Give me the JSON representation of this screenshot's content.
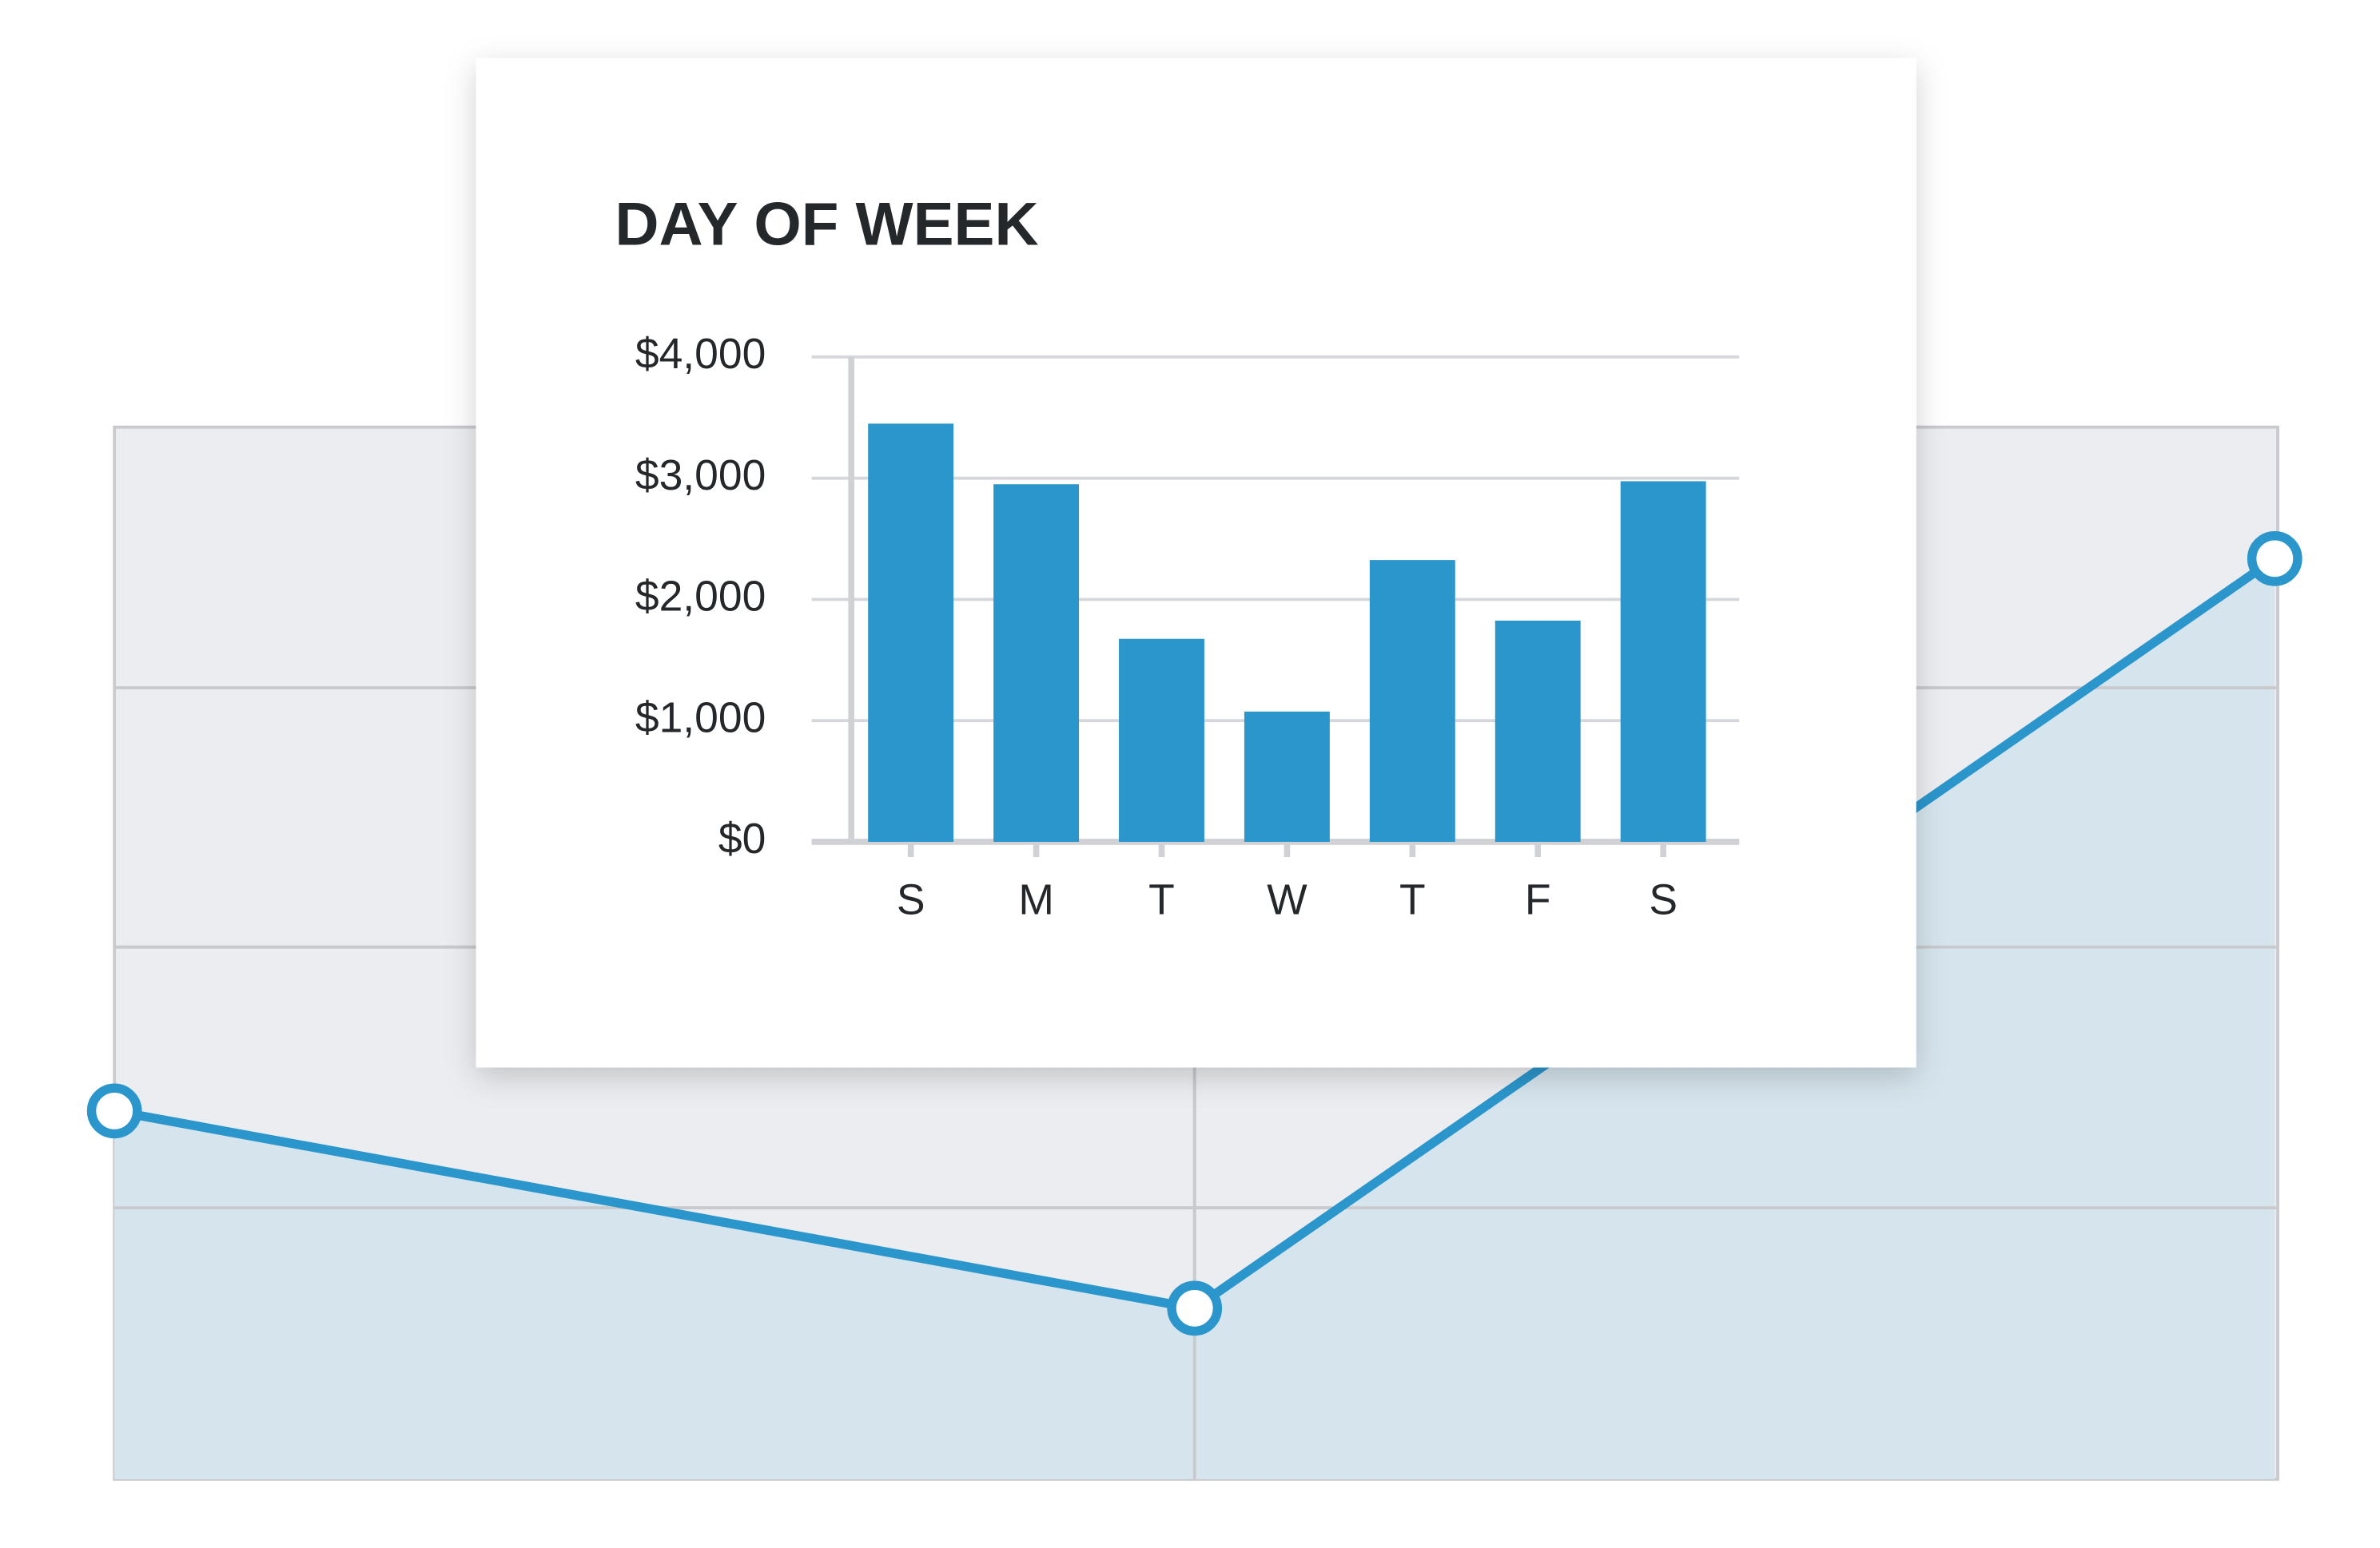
{
  "chart_data": [
    {
      "type": "bar",
      "title": "DAY OF WEEK",
      "categories": [
        "S",
        "M",
        "T",
        "W",
        "T",
        "F",
        "S"
      ],
      "values": [
        3450,
        2950,
        1675,
        1075,
        2325,
        1825,
        2975
      ],
      "color": "#2b96cc",
      "ylim": [
        0,
        4000
      ],
      "yticks": [
        {
          "value": 0,
          "label": "$0"
        },
        {
          "value": 1000,
          "label": "$1,000"
        },
        {
          "value": 2000,
          "label": "$2,000"
        },
        {
          "value": 3000,
          "label": "$3,000"
        },
        {
          "value": 4000,
          "label": "$4,000"
        }
      ],
      "grid": true
    },
    {
      "type": "area",
      "values": [
        1.4,
        0.65,
        3.5
      ],
      "ylim": [
        0,
        4
      ],
      "color": "#2b96cc"
    }
  ]
}
